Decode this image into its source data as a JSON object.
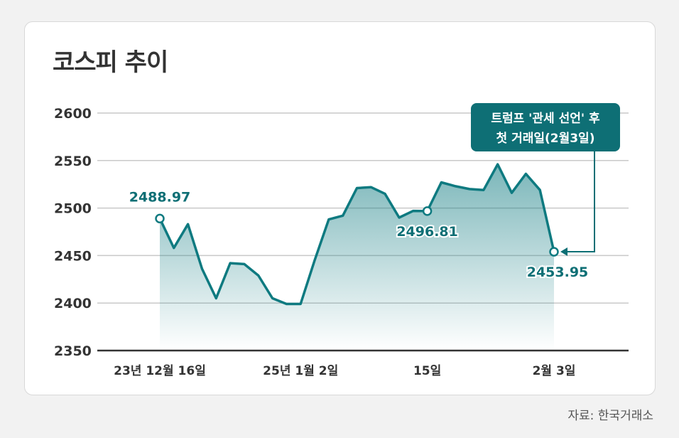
{
  "title": "코스피 추이",
  "source": "자료: 한국거래소",
  "colors": {
    "line": "#0e7a80",
    "accent": "#0e6f75",
    "grid": "#c9c9c9",
    "axis": "#333333",
    "text": "#333333"
  },
  "chart_data": {
    "type": "area",
    "title": "코스피 추이",
    "ylim": [
      2350,
      2600
    ],
    "yticks": [
      2350,
      2400,
      2450,
      2500,
      2550,
      2600
    ],
    "grid": true,
    "x_tick_labels": [
      {
        "label": "23년 12월 16일",
        "index": 0
      },
      {
        "label": "25년 1월 2일",
        "index": 10
      },
      {
        "label": "15일",
        "index": 19
      },
      {
        "label": "2월 3일",
        "index": 28
      }
    ],
    "values": [
      2488.97,
      2458,
      2483,
      2436,
      2405,
      2442,
      2441,
      2429,
      2405,
      2399,
      2399,
      2445,
      2488,
      2492,
      2521,
      2522,
      2515,
      2490,
      2497,
      2496.81,
      2527,
      2523,
      2520,
      2519,
      2546,
      2516,
      2536,
      2519,
      2453.95
    ],
    "annotations": [
      {
        "index": 0,
        "label": "2488.97"
      },
      {
        "index": 19,
        "label": "2496.81"
      },
      {
        "index": 28,
        "label": "2453.95"
      }
    ],
    "callout": {
      "line1": "트럼프 '관세 선언' 후",
      "line2": "첫 거래일(2월3일)"
    }
  }
}
